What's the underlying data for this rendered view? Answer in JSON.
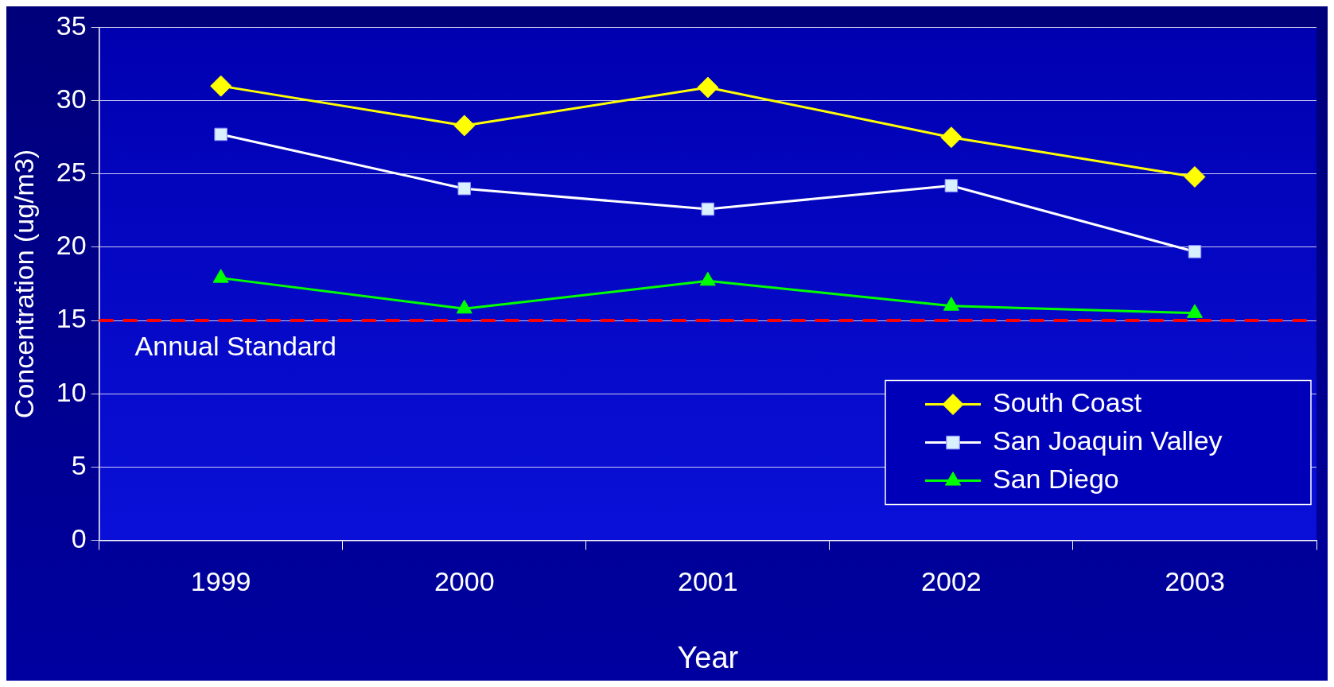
{
  "chart_data": {
    "type": "line",
    "xlabel": "Year",
    "ylabel": "Concentration (ug/m3)",
    "categories": [
      "1999",
      "2000",
      "2001",
      "2002",
      "2003"
    ],
    "series": [
      {
        "name": "South Coast",
        "color": "#ffff00",
        "marker": "diamond",
        "values": [
          31.0,
          28.3,
          30.9,
          27.5,
          24.8
        ]
      },
      {
        "name": "San Joaquin Valley",
        "color": "#ffffff",
        "marker": "square",
        "values": [
          27.7,
          24.0,
          22.6,
          24.2,
          19.7
        ]
      },
      {
        "name": "San Diego",
        "color": "#00ff00",
        "marker": "triangle",
        "values": [
          17.9,
          15.8,
          17.7,
          16.0,
          15.5
        ]
      }
    ],
    "ylim": [
      0,
      35
    ],
    "yticks": [
      0,
      5,
      10,
      15,
      20,
      25,
      30,
      35
    ],
    "grid": "y",
    "legend": "bottom right",
    "line_style": "solid",
    "ref_lines": [
      {
        "axis": "y",
        "value": 15,
        "label": "Annual Standard",
        "color": "#ff0000",
        "line_style": "dashed"
      }
    ]
  }
}
